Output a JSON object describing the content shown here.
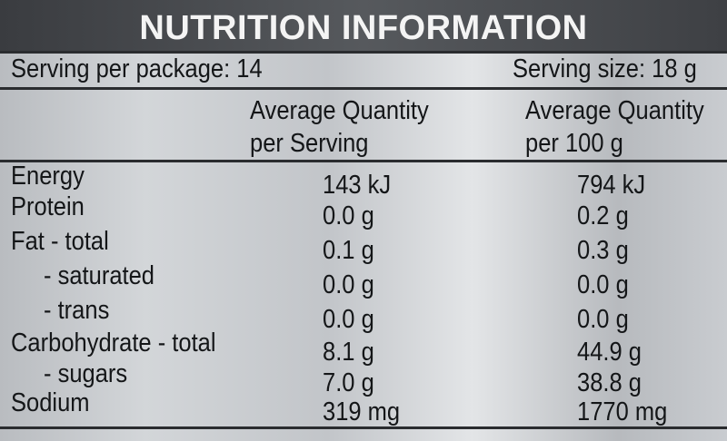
{
  "header": {
    "title": "NUTRITION INFORMATION",
    "servings_per_package": "Serving per package: 14",
    "serving_size": "Serving size: 18 g"
  },
  "table": {
    "columns": [
      [
        "Average Quantity",
        "per Serving"
      ],
      [
        "Average Quantity",
        "per 100 g"
      ]
    ],
    "rows": [
      [
        "Energy",
        "143 kJ",
        "794 kJ"
      ],
      [
        "Protein",
        "0.0 g",
        "0.2 g"
      ],
      [
        "Fat - total",
        "0.1 g",
        "0.3 g"
      ],
      [
        "- saturated",
        "0.0 g",
        "0.0 g"
      ],
      [
        "- trans",
        "0.0 g",
        "0.0 g"
      ],
      [
        "Carbohydrate - total",
        "8.1 g",
        "44.9 g"
      ],
      [
        "- sugars",
        "7.0 g",
        "38.8 g"
      ],
      [
        "Sodium",
        "319 mg",
        "1770 mg"
      ]
    ]
  }
}
